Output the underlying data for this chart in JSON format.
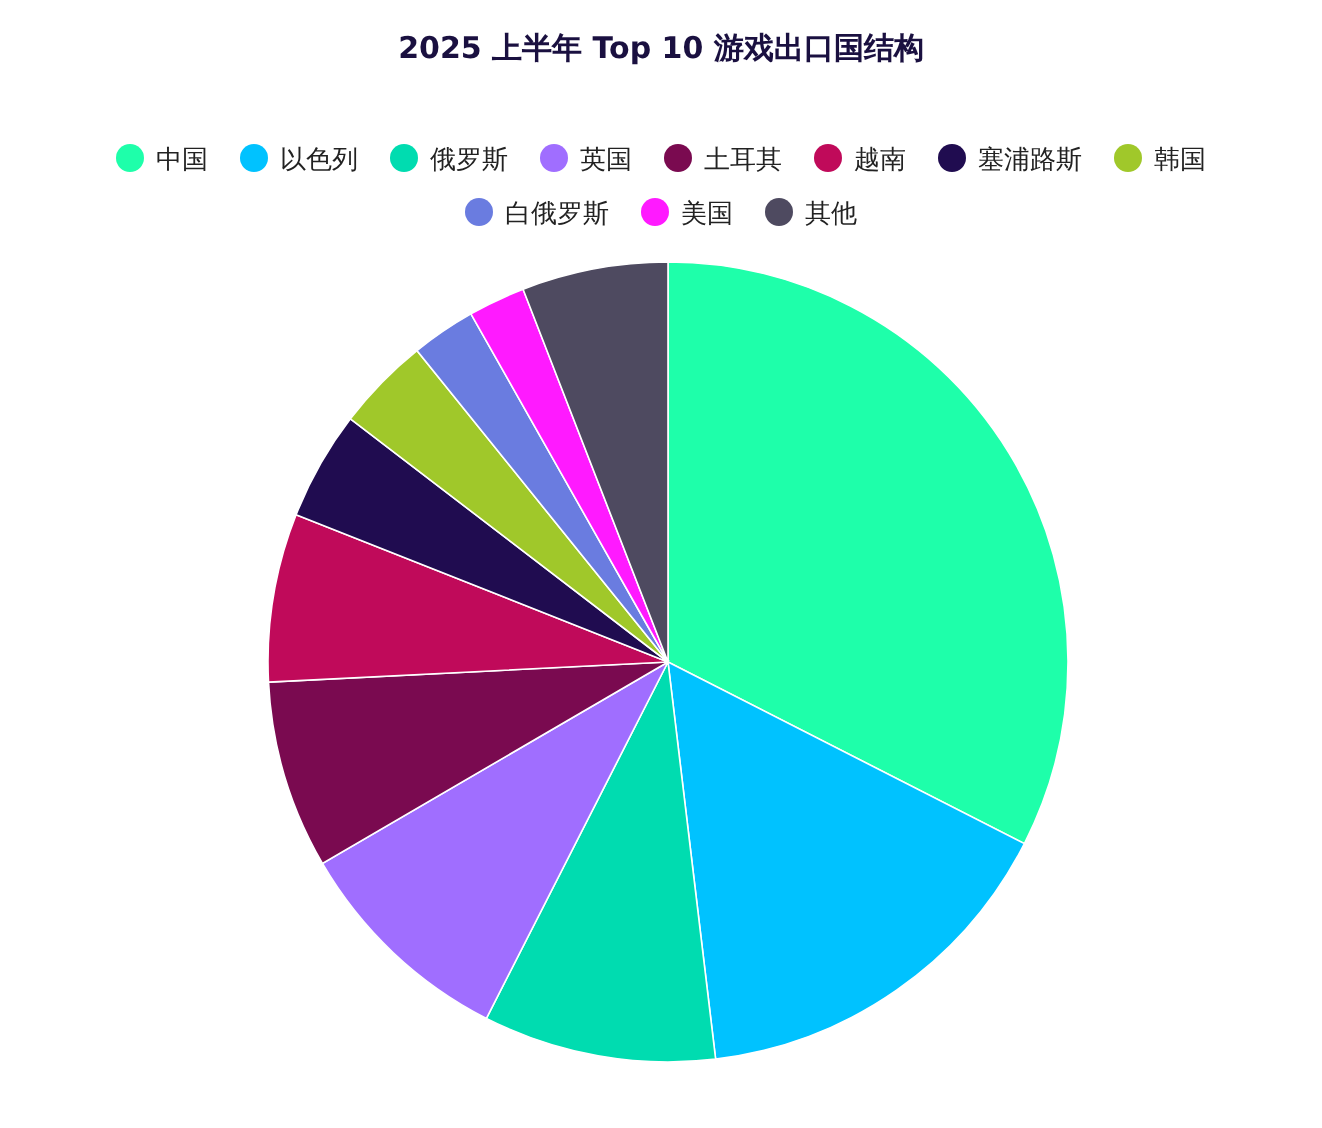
{
  "chart_data": {
    "type": "pie",
    "title": "2025 上半年 Top 10 游戏出口国结构",
    "categories": [
      "中国",
      "以色列",
      "俄罗斯",
      "英国",
      "土耳其",
      "越南",
      "塞浦路斯",
      "韩国",
      "白俄罗斯",
      "美国",
      "其他"
    ],
    "values": [
      32.5,
      15.6,
      9.4,
      9.1,
      7.6,
      6.8,
      4.4,
      3.8,
      2.6,
      2.3,
      5.9
    ],
    "colors": [
      "#1effaa",
      "#00c2ff",
      "#00dcb0",
      "#a06eff",
      "#7a0a50",
      "#c00a5a",
      "#200c50",
      "#a0c82a",
      "#6a7ce0",
      "#ff1aff",
      "#4e4a60"
    ],
    "legend": "top"
  }
}
